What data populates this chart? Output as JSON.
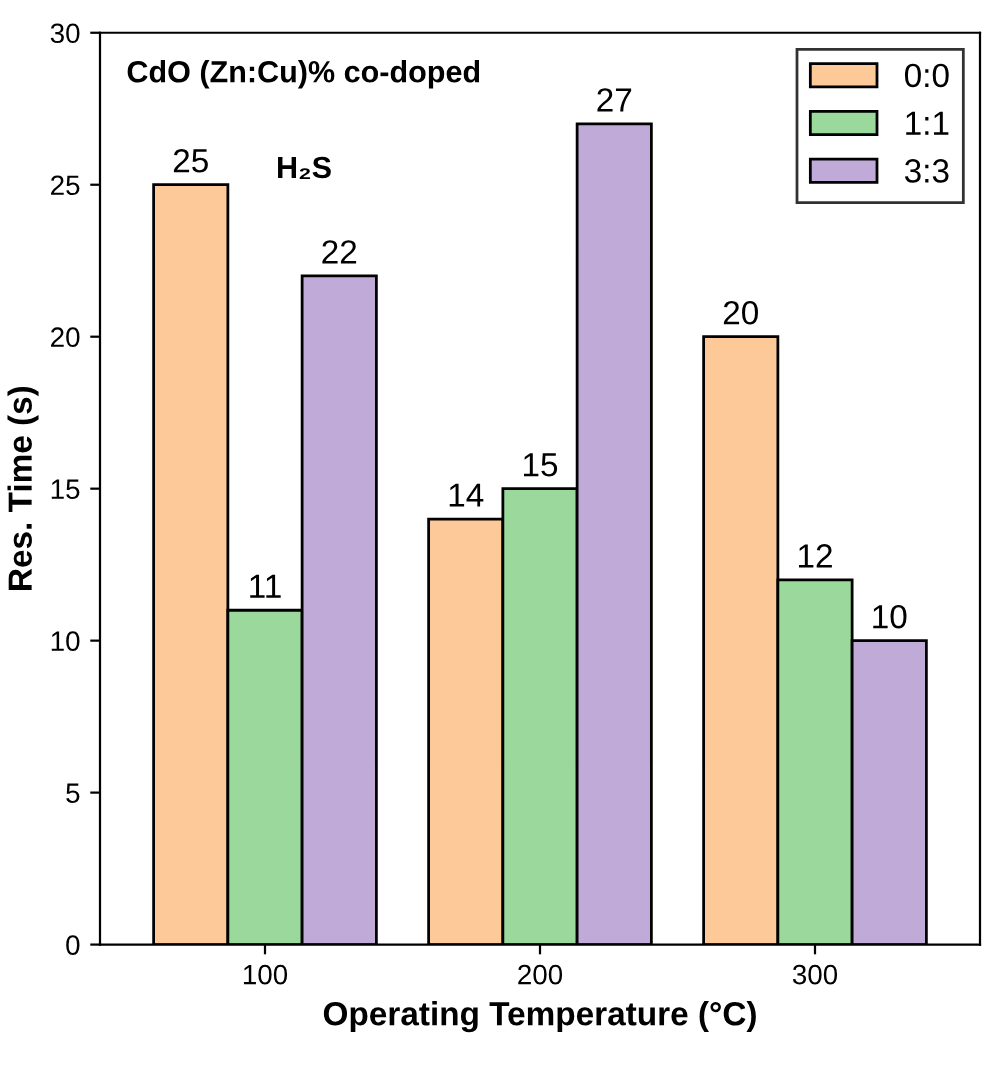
{
  "chart_data": {
    "type": "bar",
    "xlabel": "Operating Temperature (°C)",
    "ylabel": "Res. Time (s)",
    "categories": [
      "100",
      "200",
      "300"
    ],
    "series": [
      {
        "name": "0:0",
        "color": "#fdc998",
        "values": [
          25,
          14,
          20
        ]
      },
      {
        "name": "1:1",
        "color": "#9ad99b",
        "values": [
          11,
          15,
          12
        ]
      },
      {
        "name": "3:3",
        "color": "#bfaad8",
        "values": [
          22,
          27,
          10
        ]
      }
    ],
    "ylim": [
      0,
      30
    ],
    "yticks": [
      0,
      5,
      10,
      15,
      20,
      25,
      30
    ],
    "data_labels": true,
    "legend": "top right",
    "grid": false,
    "annotations": [
      "CdO (Zn:Cu)% co-doped",
      "H₂S"
    ]
  }
}
